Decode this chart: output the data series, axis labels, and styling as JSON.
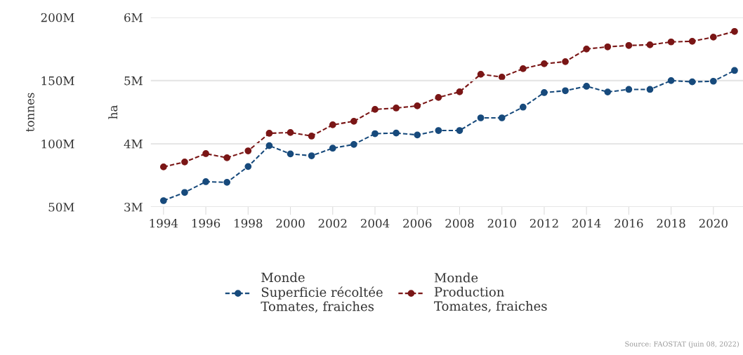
{
  "chart_data": {
    "type": "line",
    "x": [
      1994,
      1995,
      1996,
      1997,
      1998,
      1999,
      2000,
      2001,
      2002,
      2003,
      2004,
      2005,
      2006,
      2007,
      2008,
      2009,
      2010,
      2011,
      2012,
      2013,
      2014,
      2015,
      2016,
      2017,
      2018,
      2019,
      2020,
      2021
    ],
    "series": [
      {
        "name": "Monde\nSuperficie récoltée\nTomates, fraiches",
        "color": "#174a7c",
        "values": [
          3100000,
          3230000,
          3400000,
          3390000,
          3640000,
          3970000,
          3840000,
          3810000,
          3930000,
          3990000,
          4160000,
          4170000,
          4140000,
          4210000,
          4210000,
          4410000,
          4410000,
          4580000,
          4810000,
          4840000,
          4910000,
          4820000,
          4860000,
          4860000,
          5000000,
          4980000,
          4990000,
          5160000
        ]
      },
      {
        "name": "Monde\nProduction\nTomates, fraiches",
        "color": "#7a1616",
        "axis": "y2",
        "values": [
          81700000,
          85600000,
          92200000,
          88900000,
          94400000,
          108300000,
          108900000,
          106100000,
          115000000,
          117800000,
          127200000,
          128300000,
          130000000,
          136700000,
          141100000,
          155000000,
          152800000,
          159400000,
          163300000,
          165000000,
          175000000,
          176700000,
          177800000,
          178300000,
          180600000,
          181100000,
          184400000,
          188900000
        ]
      }
    ],
    "ylabel": "ha",
    "y2label": "tonnes",
    "xlim": [
      1993.4,
      2021.4
    ],
    "xticks": [
      1994,
      1996,
      1998,
      2000,
      2002,
      2004,
      2006,
      2008,
      2010,
      2012,
      2014,
      2016,
      2018,
      2020
    ],
    "ylim": [
      3000000,
      6000000
    ],
    "yticks": [
      {
        "value": 3000000,
        "label": "3M"
      },
      {
        "value": 4000000,
        "label": "4M"
      },
      {
        "value": 5000000,
        "label": "5M"
      },
      {
        "value": 6000000,
        "label": "6M"
      }
    ],
    "y2lim": [
      50000000,
      200000000
    ],
    "y2ticks": [
      {
        "value": 50000000,
        "label": "50M"
      },
      {
        "value": 100000000,
        "label": "100M"
      },
      {
        "value": 150000000,
        "label": "150M"
      },
      {
        "value": 200000000,
        "label": "200M"
      }
    ],
    "grid": "y",
    "legend": "bottom",
    "marker": "circle",
    "line_style": "dashed",
    "annotations": [
      "Source: FAOSTAT (juin 08, 2022)"
    ]
  }
}
